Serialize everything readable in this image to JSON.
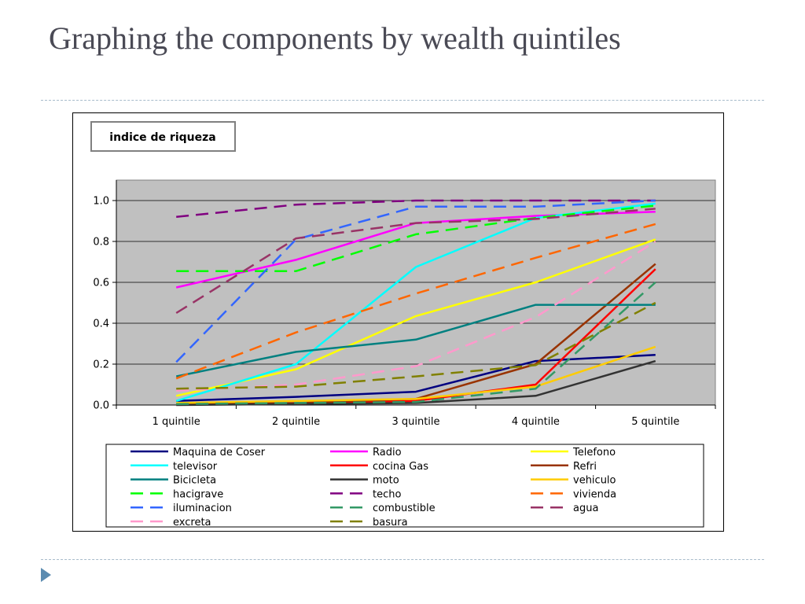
{
  "slide": {
    "title": "Graphing the components by wealth quintiles"
  },
  "chart_data": {
    "type": "line",
    "title": "indice de riqueza",
    "xlabel": "",
    "ylabel": "",
    "categories": [
      "1 quintile",
      "2 quintile",
      "3 quintile",
      "4 quintile",
      "5 quintile"
    ],
    "ylim": [
      0,
      1.1
    ],
    "yticks": [
      0.0,
      0.2,
      0.4,
      0.6,
      0.8,
      1.0
    ],
    "ytick_labels": [
      "0.0",
      "0.2",
      "0.4",
      "0.6",
      "0.8",
      "1.0"
    ],
    "grid": true,
    "plot_background": "#c0c0c0",
    "legend_position": "bottom",
    "series": [
      {
        "name": "Maquina de Coser",
        "color": "#000080",
        "dashed": false,
        "values": [
          0.02,
          0.04,
          0.065,
          0.215,
          0.245
        ]
      },
      {
        "name": "Radio",
        "color": "#ff00ff",
        "dashed": false,
        "values": [
          0.575,
          0.71,
          0.89,
          0.925,
          0.945
        ]
      },
      {
        "name": "Telefono",
        "color": "#ffff00",
        "dashed": false,
        "values": [
          0.045,
          0.175,
          0.435,
          0.6,
          0.81
        ]
      },
      {
        "name": "televisor",
        "color": "#00ffff",
        "dashed": false,
        "values": [
          0.02,
          0.2,
          0.675,
          0.915,
          0.985
        ]
      },
      {
        "name": "cocina Gas",
        "color": "#ff0000",
        "dashed": false,
        "values": [
          0.005,
          0.005,
          0.02,
          0.1,
          0.665
        ]
      },
      {
        "name": "Refri",
        "color": "#993300",
        "dashed": false,
        "values": [
          0.005,
          0.01,
          0.03,
          0.2,
          0.69
        ]
      },
      {
        "name": "Bicicleta",
        "color": "#008080",
        "dashed": false,
        "values": [
          0.14,
          0.26,
          0.32,
          0.49,
          0.49
        ]
      },
      {
        "name": "moto",
        "color": "#333333",
        "dashed": false,
        "values": [
          0.0,
          0.005,
          0.01,
          0.045,
          0.215
        ]
      },
      {
        "name": "vehiculo",
        "color": "#ffcc00",
        "dashed": false,
        "values": [
          0.01,
          0.02,
          0.03,
          0.09,
          0.285
        ]
      },
      {
        "name": "hacigrave",
        "color": "#00ff00",
        "dashed": true,
        "values": [
          0.655,
          0.655,
          0.835,
          0.915,
          0.975
        ]
      },
      {
        "name": "techo",
        "color": "#800080",
        "dashed": true,
        "values": [
          0.92,
          0.98,
          1.0,
          1.0,
          1.0
        ]
      },
      {
        "name": "vivienda",
        "color": "#ff6600",
        "dashed": true,
        "values": [
          0.13,
          0.355,
          0.545,
          0.72,
          0.885
        ]
      },
      {
        "name": "iluminacion",
        "color": "#3366ff",
        "dashed": true,
        "values": [
          0.21,
          0.81,
          0.97,
          0.97,
          1.0
        ]
      },
      {
        "name": "combustible",
        "color": "#339966",
        "dashed": true,
        "values": [
          0.005,
          0.01,
          0.015,
          0.08,
          0.6
        ]
      },
      {
        "name": "agua",
        "color": "#993366",
        "dashed": true,
        "values": [
          0.45,
          0.815,
          0.89,
          0.91,
          0.96
        ]
      },
      {
        "name": "excreta",
        "color": "#ff99cc",
        "dashed": true,
        "values": [
          0.07,
          0.1,
          0.19,
          0.43,
          0.8
        ]
      },
      {
        "name": "basura",
        "color": "#808000",
        "dashed": true,
        "values": [
          0.08,
          0.09,
          0.14,
          0.195,
          0.5
        ]
      }
    ]
  }
}
